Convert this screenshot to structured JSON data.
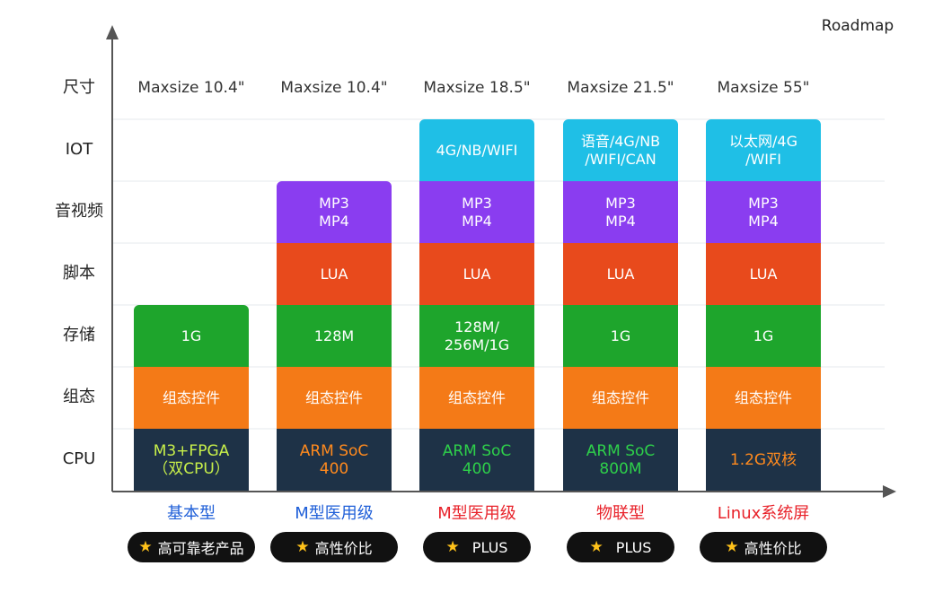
{
  "roadmap_label": "Roadmap",
  "colors": {
    "iot": "#1fbfe6",
    "av": "#8a3df0",
    "script": "#e84a1c",
    "storage": "#1ea52c",
    "config": "#f47a17",
    "cpu": "#1e3247",
    "title_blue": "#1f5fd8",
    "title_red": "#e8222a"
  },
  "chart_data": {
    "type": "table",
    "rows": [
      "尺寸",
      "IOT",
      "音视频",
      "脚本",
      "存储",
      "组态",
      "CPU"
    ],
    "columns": [
      {
        "title": "基本型",
        "title_color": "#1f5fd8",
        "badge": "高可靠老产品",
        "size": "Maxsize 10.4\"",
        "iot": "",
        "av": "",
        "script": "",
        "storage": "1G",
        "config": "组态控件",
        "cpu": "M3+FPGA\n（双CPU）",
        "cpu_color": "#c8f04a"
      },
      {
        "title": "M型医用级",
        "title_color": "#1f5fd8",
        "badge": "高性价比",
        "size": "Maxsize 10.4\"",
        "iot": "",
        "av": "MP3\nMP4",
        "script": "LUA",
        "storage": "128M",
        "config": "组态控件",
        "cpu": "ARM SoC\n400",
        "cpu_color": "#ff8a1e"
      },
      {
        "title": "M型医用级",
        "title_color": "#e8222a",
        "badge": "PLUS",
        "size": "Maxsize 18.5\"",
        "iot": "4G/NB/WIFI",
        "av": "MP3\nMP4",
        "script": "LUA",
        "storage": "128M/\n256M/1G",
        "config": "组态控件",
        "cpu": "ARM SoC\n400",
        "cpu_color": "#2ed04a"
      },
      {
        "title": "物联型",
        "title_color": "#e8222a",
        "badge": "PLUS",
        "size": "Maxsize 21.5\"",
        "iot": "语音/4G/NB\n/WIFI/CAN",
        "av": "MP3\nMP4",
        "script": "LUA",
        "storage": "1G",
        "config": "组态控件",
        "cpu": "ARM SoC\n800M",
        "cpu_color": "#2ed04a"
      },
      {
        "title": "Linux系统屏",
        "title_color": "#e8222a",
        "badge": "高性价比",
        "size": "Maxsize 55\"",
        "iot": "以太网/4G\n/WIFI",
        "av": "MP3\nMP4",
        "script": "LUA",
        "storage": "1G",
        "config": "组态控件",
        "cpu": "1.2G双核",
        "cpu_color": "#ff8a1e"
      }
    ]
  }
}
